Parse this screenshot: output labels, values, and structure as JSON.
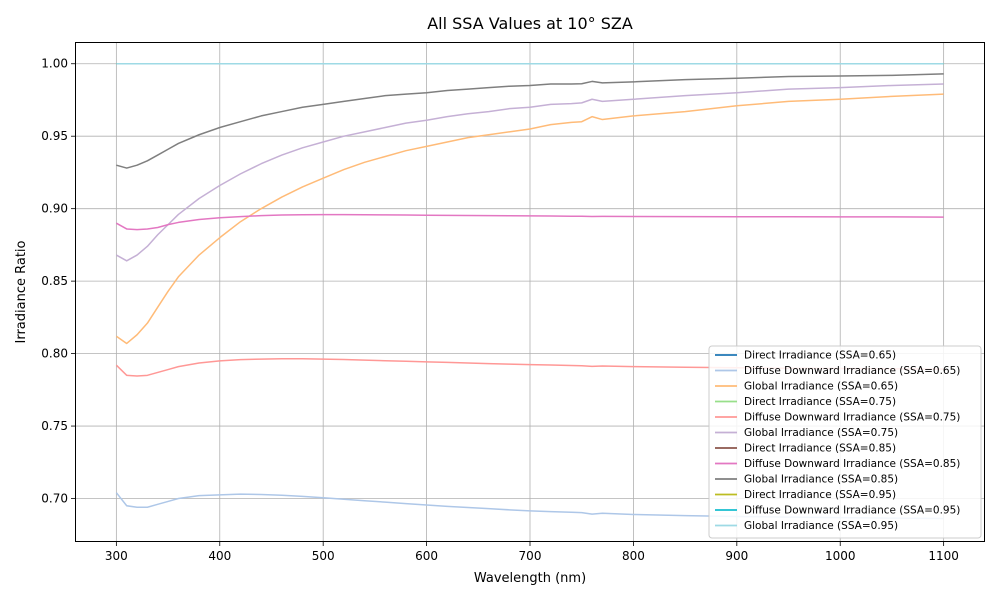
{
  "chart_data": {
    "type": "line",
    "title": "All SSA Values at 10° SZA",
    "xlabel": "Wavelength (nm)",
    "ylabel": "Irradiance Ratio",
    "xlim": [
      260,
      1140
    ],
    "ylim": [
      0.67,
      1.015
    ],
    "xticks": [
      300,
      400,
      500,
      600,
      700,
      800,
      900,
      1000,
      1100
    ],
    "yticks": [
      0.7,
      0.75,
      0.8,
      0.85,
      0.9,
      0.95,
      1.0
    ],
    "grid": true,
    "legend_position": "lower-right",
    "x": [
      300,
      310,
      320,
      330,
      340,
      350,
      360,
      380,
      400,
      420,
      440,
      460,
      480,
      500,
      520,
      540,
      560,
      580,
      600,
      620,
      640,
      660,
      680,
      700,
      720,
      740,
      750,
      760,
      770,
      800,
      850,
      900,
      950,
      1000,
      1050,
      1100
    ],
    "series": [
      {
        "name": "Direct Irradiance (SSA=0.65)",
        "color": "#1f77b4",
        "values": [
          1,
          1,
          1,
          1,
          1,
          1,
          1,
          1,
          1,
          1,
          1,
          1,
          1,
          1,
          1,
          1,
          1,
          1,
          1,
          1,
          1,
          1,
          1,
          1,
          1,
          1,
          1,
          1,
          1,
          1,
          1,
          1,
          1,
          1,
          1,
          1
        ]
      },
      {
        "name": "Diffuse Downward Irradiance (SSA=0.65)",
        "color": "#aec7e8",
        "values": [
          0.704,
          0.695,
          0.694,
          0.694,
          0.696,
          0.698,
          0.7,
          0.702,
          0.7025,
          0.703,
          0.7028,
          0.7023,
          0.7015,
          0.7005,
          0.6995,
          0.6985,
          0.6975,
          0.6965,
          0.6955,
          0.6946,
          0.6938,
          0.693,
          0.6922,
          0.6915,
          0.691,
          0.6905,
          0.6903,
          0.6892,
          0.6898,
          0.689,
          0.6882,
          0.6876,
          0.6872,
          0.6868,
          0.6865,
          0.6862
        ]
      },
      {
        "name": "Global Irradiance (SSA=0.65)",
        "color": "#ffbb78",
        "values": [
          0.812,
          0.807,
          0.813,
          0.821,
          0.832,
          0.843,
          0.853,
          0.868,
          0.88,
          0.891,
          0.9,
          0.908,
          0.915,
          0.921,
          0.927,
          0.932,
          0.936,
          0.94,
          0.943,
          0.946,
          0.949,
          0.951,
          0.953,
          0.955,
          0.958,
          0.9595,
          0.96,
          0.9635,
          0.9615,
          0.964,
          0.967,
          0.971,
          0.974,
          0.9755,
          0.9775,
          0.979
        ]
      },
      {
        "name": "Direct Irradiance (SSA=0.75)",
        "color": "#98df8a",
        "values": [
          1,
          1,
          1,
          1,
          1,
          1,
          1,
          1,
          1,
          1,
          1,
          1,
          1,
          1,
          1,
          1,
          1,
          1,
          1,
          1,
          1,
          1,
          1,
          1,
          1,
          1,
          1,
          1,
          1,
          1,
          1,
          1,
          1,
          1,
          1,
          1
        ]
      },
      {
        "name": "Diffuse Downward Irradiance (SSA=0.75)",
        "color": "#ff9896",
        "values": [
          0.792,
          0.785,
          0.7845,
          0.785,
          0.787,
          0.789,
          0.791,
          0.7935,
          0.795,
          0.7958,
          0.7962,
          0.7964,
          0.7964,
          0.7962,
          0.7959,
          0.7955,
          0.7951,
          0.7947,
          0.7943,
          0.7939,
          0.7935,
          0.7931,
          0.7927,
          0.7924,
          0.7921,
          0.7918,
          0.7916,
          0.7912,
          0.7914,
          0.791,
          0.7906,
          0.7902,
          0.7899,
          0.7897,
          0.7895,
          0.7893
        ]
      },
      {
        "name": "Global Irradiance (SSA=0.75)",
        "color": "#c5b0d5",
        "values": [
          0.868,
          0.864,
          0.868,
          0.874,
          0.882,
          0.889,
          0.896,
          0.907,
          0.916,
          0.924,
          0.931,
          0.937,
          0.942,
          0.946,
          0.95,
          0.953,
          0.956,
          0.959,
          0.961,
          0.9635,
          0.9655,
          0.967,
          0.969,
          0.97,
          0.972,
          0.9725,
          0.973,
          0.9755,
          0.974,
          0.9755,
          0.978,
          0.98,
          0.9825,
          0.9835,
          0.985,
          0.986
        ]
      },
      {
        "name": "Direct Irradiance (SSA=0.85)",
        "color": "#8c564b",
        "values": [
          1,
          1,
          1,
          1,
          1,
          1,
          1,
          1,
          1,
          1,
          1,
          1,
          1,
          1,
          1,
          1,
          1,
          1,
          1,
          1,
          1,
          1,
          1,
          1,
          1,
          1,
          1,
          1,
          1,
          1,
          1,
          1,
          1,
          1,
          1,
          1
        ]
      },
      {
        "name": "Diffuse Downward Irradiance (SSA=0.85)",
        "color": "#e377c2",
        "values": [
          0.89,
          0.886,
          0.8855,
          0.886,
          0.887,
          0.889,
          0.8905,
          0.8925,
          0.8937,
          0.8945,
          0.8952,
          0.8956,
          0.8958,
          0.8959,
          0.8959,
          0.8958,
          0.8957,
          0.8956,
          0.8955,
          0.8954,
          0.8953,
          0.8952,
          0.8951,
          0.895,
          0.8949,
          0.8948,
          0.8948,
          0.8946,
          0.8947,
          0.8946,
          0.8945,
          0.8944,
          0.8944,
          0.8943,
          0.8943,
          0.8942
        ]
      },
      {
        "name": "Global Irradiance (SSA=0.85)",
        "color": "#7f7f7f",
        "values": [
          0.93,
          0.928,
          0.93,
          0.933,
          0.937,
          0.941,
          0.945,
          0.951,
          0.956,
          0.96,
          0.964,
          0.967,
          0.97,
          0.972,
          0.974,
          0.976,
          0.978,
          0.979,
          0.98,
          0.9815,
          0.9825,
          0.9835,
          0.9845,
          0.985,
          0.986,
          0.986,
          0.9862,
          0.9878,
          0.9868,
          0.9875,
          0.989,
          0.99,
          0.9912,
          0.9915,
          0.992,
          0.993
        ]
      },
      {
        "name": "Direct Irradiance (SSA=0.95)",
        "color": "#bcbd22",
        "values": [
          1,
          1,
          1,
          1,
          1,
          1,
          1,
          1,
          1,
          1,
          1,
          1,
          1,
          1,
          1,
          1,
          1,
          1,
          1,
          1,
          1,
          1,
          1,
          1,
          1,
          1,
          1,
          1,
          1,
          1,
          1,
          1,
          1,
          1,
          1,
          1
        ]
      },
      {
        "name": "Diffuse Downward Irradiance (SSA=0.95)",
        "color": "#17becf",
        "values": [
          1,
          1,
          1,
          1,
          1,
          1,
          1,
          1,
          1,
          1,
          1,
          1,
          1,
          1,
          1,
          1,
          1,
          1,
          1,
          1,
          1,
          1,
          1,
          1,
          1,
          1,
          1,
          1,
          1,
          1,
          1,
          1,
          1,
          1,
          1,
          1
        ]
      },
      {
        "name": "Global Irradiance (SSA=0.95)",
        "color": "#9edae5",
        "values": [
          1,
          1,
          1,
          1,
          1,
          1,
          1,
          1,
          1,
          1,
          1,
          1,
          1,
          1,
          1,
          1,
          1,
          1,
          1,
          1,
          1,
          1,
          1,
          1,
          1,
          1,
          1,
          1,
          1,
          1,
          1,
          1,
          1,
          1,
          1,
          1
        ]
      }
    ]
  }
}
